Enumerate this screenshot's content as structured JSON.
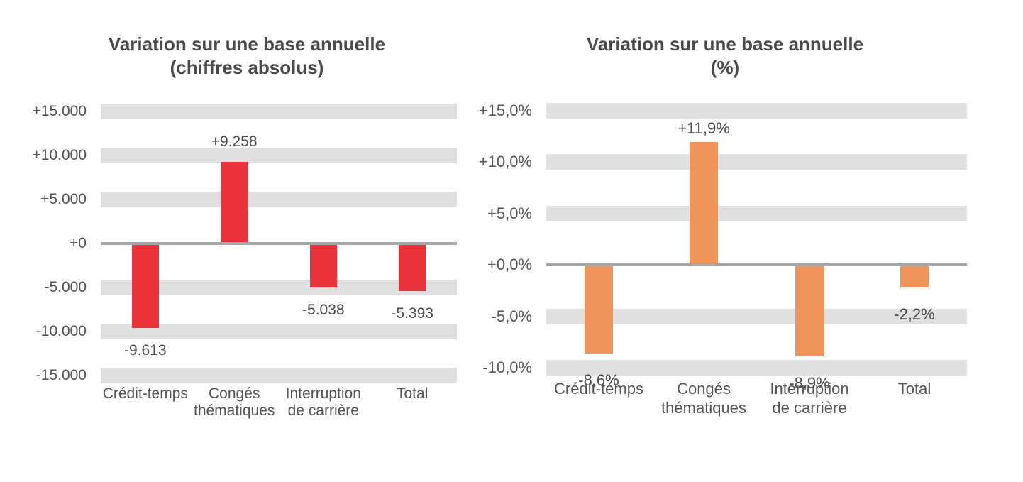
{
  "page": {
    "background_color": "#ffffff"
  },
  "colors": {
    "bar_red": "#e93239",
    "bar_orange": "#f0965c",
    "gridline_band": "#e0e0e0",
    "zero_axis_line": "#a6a6a6",
    "title_text": "#4a4a4a",
    "axis_text": "#545454"
  },
  "chart_data": [
    {
      "type": "bar",
      "title": "Variation sur une base annuelle",
      "subtitle": "(chiffres absolus)",
      "categories": [
        "Crédit-temps",
        "Congés thématiques",
        "Interruption de carrière",
        "Total"
      ],
      "category_lines": [
        [
          "Crédit-temps"
        ],
        [
          "Congés",
          "thématiques"
        ],
        [
          "Interruption",
          "de carrière"
        ],
        [
          "Total"
        ]
      ],
      "values": [
        -9613,
        9258,
        -5038,
        -5393
      ],
      "value_labels": [
        "-9.613",
        "+9.258",
        "-5.038",
        "-5.393"
      ],
      "bar_color": "#e93239",
      "band_color": "#e0e0e0",
      "zero_line_color": "#a6a6a6",
      "xlabel": "",
      "ylabel": "",
      "ylim": [
        -17500,
        17500
      ],
      "grid": "horizontal-striped-bands",
      "legend": "none",
      "y_ticks": [
        {
          "label": "+15.000",
          "value": 15000
        },
        {
          "label": "+10.000",
          "value": 10000
        },
        {
          "label": "+5.000",
          "value": 5000
        },
        {
          "label": "+0",
          "value": 0
        },
        {
          "label": "-5.000",
          "value": -5000
        },
        {
          "label": "-10.000",
          "value": -10000
        },
        {
          "label": "-15.000",
          "value": -15000
        }
      ]
    },
    {
      "type": "bar",
      "title": "Variation sur une base annuelle",
      "subtitle": "(%)",
      "categories": [
        "Crédit-temps",
        "Congés thématiques",
        "Interruption de carrière",
        "Total"
      ],
      "category_lines": [
        [
          "Crédit-temps"
        ],
        [
          "Congés",
          "thématiques"
        ],
        [
          "Interruption",
          "de carrière"
        ],
        [
          "Total"
        ]
      ],
      "values": [
        -8.6,
        11.9,
        -8.9,
        -2.2
      ],
      "value_labels": [
        "-8,6%",
        "+11,9%",
        "-8,9%",
        "-2,2%"
      ],
      "bar_color": "#f0965c",
      "band_color": "#e0e0e0",
      "zero_line_color": "#a6a6a6",
      "xlabel": "",
      "ylabel": "",
      "ylim": [
        -12.5,
        17.5
      ],
      "grid": "horizontal-striped-bands",
      "legend": "none",
      "y_ticks": [
        {
          "label": "+15,0%",
          "value": 15
        },
        {
          "label": "+10,0%",
          "value": 10
        },
        {
          "label": "+5,0%",
          "value": 5
        },
        {
          "label": "+0,0%",
          "value": 0
        },
        {
          "label": "-5,0%",
          "value": -5
        },
        {
          "label": "-10,0%",
          "value": -10
        }
      ]
    }
  ]
}
